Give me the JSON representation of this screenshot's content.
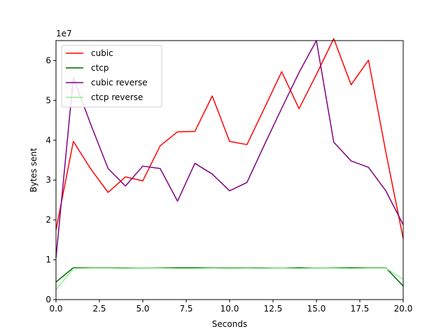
{
  "chart_data": {
    "type": "line",
    "title": "",
    "xlabel": "Seconds",
    "ylabel": "Bytes sent",
    "offset_text": "1e7",
    "xlim": [
      0,
      20
    ],
    "ylim": [
      0,
      65000000
    ],
    "x_ticks": [
      0,
      2.5,
      5,
      7.5,
      10,
      12.5,
      15,
      17.5,
      20
    ],
    "x_tick_labels": [
      "0.0",
      "2.5",
      "5.0",
      "7.5",
      "10.0",
      "12.5",
      "15.0",
      "17.5",
      "20.0"
    ],
    "y_ticks": [
      0,
      10000000,
      20000000,
      30000000,
      40000000,
      50000000,
      60000000
    ],
    "y_tick_labels": [
      "0",
      "1",
      "2",
      "3",
      "4",
      "5",
      "6"
    ],
    "grid": false,
    "legend_position": "upper-left",
    "x": [
      0,
      1,
      2,
      3,
      4,
      5,
      6,
      7,
      8,
      9,
      10,
      11,
      12,
      13,
      14,
      15,
      16,
      17,
      18,
      19,
      20
    ],
    "series": [
      {
        "name": "cubic",
        "color": "#ff0000",
        "values": [
          17500000,
          39700000,
          32800000,
          26900000,
          30800000,
          29800000,
          38600000,
          42100000,
          42200000,
          51100000,
          39700000,
          38900000,
          48000000,
          57200000,
          47900000,
          56500000,
          65500000,
          53900000,
          60100000,
          37000000,
          15300000
        ]
      },
      {
        "name": "ctcp",
        "color": "#006400",
        "values": [
          4400000,
          8000000,
          8000000,
          8000000,
          7900000,
          7900000,
          8000000,
          8000000,
          8000000,
          8000000,
          7900000,
          8000000,
          7900000,
          7900000,
          8000000,
          7900000,
          8000000,
          8000000,
          8000000,
          8000000,
          3400000
        ]
      },
      {
        "name": "cubic reverse",
        "color": "#800080",
        "values": [
          10500000,
          55700000,
          44000000,
          32900000,
          28500000,
          33500000,
          32900000,
          24700000,
          34200000,
          31500000,
          27300000,
          29400000,
          38800000,
          48000000,
          57000000,
          65000000,
          39500000,
          34800000,
          33200000,
          27300000,
          18800000
        ]
      },
      {
        "name": "ctcp reverse",
        "color": "#90ee90",
        "values": [
          2500000,
          7800000,
          7900000,
          7900000,
          7800000,
          7900000,
          7900000,
          7800000,
          7800000,
          7900000,
          7800000,
          7900000,
          7800000,
          7900000,
          7800000,
          7900000,
          7900000,
          7800000,
          7900000,
          7900000,
          5100000
        ]
      }
    ]
  }
}
